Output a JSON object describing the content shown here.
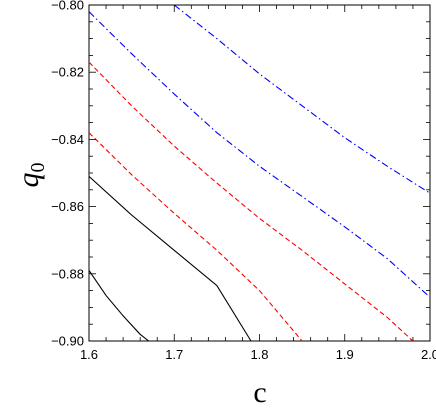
{
  "chart_data": {
    "type": "line",
    "title": "",
    "xlabel": "c",
    "ylabel": "q",
    "ylabel_subscript": "0",
    "xlim": [
      1.6,
      2.0
    ],
    "ylim": [
      -0.9,
      -0.8
    ],
    "xticks": [
      1.6,
      1.7,
      1.8,
      1.9,
      2.0
    ],
    "xtick_labels": [
      "1.6",
      "1.7",
      "1.8",
      "1.9",
      "2.0"
    ],
    "yticks": [
      -0.8,
      -0.82,
      -0.84,
      -0.86,
      -0.88,
      -0.9
    ],
    "ytick_labels": [
      "−0.80",
      "−0.82",
      "−0.84",
      "−0.86",
      "−0.88",
      "−0.90"
    ],
    "grid": false,
    "legend": "none",
    "series": [
      {
        "color": "#000000",
        "dash": "solid",
        "x": [
          1.6,
          1.62,
          1.64,
          1.66,
          1.67
        ],
        "y": [
          -0.879,
          -0.8865,
          -0.8925,
          -0.898,
          -0.9
        ]
      },
      {
        "color": "#000000",
        "dash": "solid",
        "x": [
          1.6,
          1.65,
          1.7,
          1.75,
          1.79
        ],
        "y": [
          -0.851,
          -0.8625,
          -0.873,
          -0.8835,
          -0.9
        ]
      },
      {
        "color": "#ff0000",
        "dash": "dashed",
        "x": [
          1.6,
          1.65,
          1.7,
          1.75,
          1.8,
          1.85
        ],
        "y": [
          -0.838,
          -0.8505,
          -0.862,
          -0.873,
          -0.885,
          -0.9
        ]
      },
      {
        "color": "#ff0000",
        "dash": "dashed",
        "x": [
          1.6,
          1.65,
          1.7,
          1.75,
          1.8,
          1.85,
          1.9,
          1.95,
          1.98
        ],
        "y": [
          -0.817,
          -0.83,
          -0.842,
          -0.853,
          -0.8635,
          -0.873,
          -0.883,
          -0.893,
          -0.9
        ]
      },
      {
        "color": "#0000ff",
        "dash": "dashdot",
        "x": [
          1.6,
          1.65,
          1.7,
          1.75,
          1.8,
          1.85,
          1.9,
          1.95,
          2.0
        ],
        "y": [
          -0.802,
          -0.8145,
          -0.8265,
          -0.838,
          -0.848,
          -0.857,
          -0.866,
          -0.8755,
          -0.887
        ]
      },
      {
        "color": "#0000ff",
        "dash": "dashdot",
        "x": [
          1.7,
          1.75,
          1.8,
          1.85,
          1.9,
          1.95,
          2.0
        ],
        "y": [
          -0.8,
          -0.81,
          -0.8205,
          -0.83,
          -0.8395,
          -0.848,
          -0.856
        ]
      }
    ]
  }
}
